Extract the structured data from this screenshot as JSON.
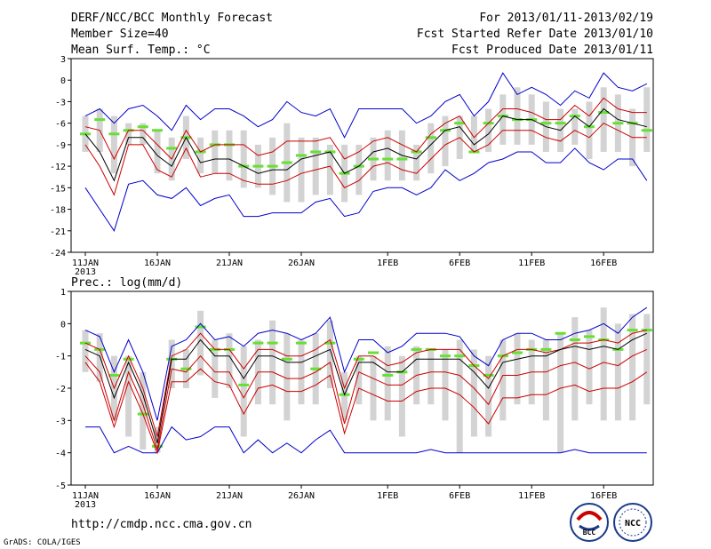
{
  "header": {
    "title": "DERF/NCC/BCC Monthly Forecast",
    "member_size": "Member Size=40",
    "variable": "Mean Surf. Temp.: °C",
    "period": "For 2013/01/11-2013/02/19",
    "started": "Fcst Started Refer Date 2013/01/10",
    "produced": "Fcst Produced Date 2013/01/11"
  },
  "footer": {
    "url": "http://cmdp.ncc.cma.gov.cn",
    "credit": "GrADS: COLA/IGES",
    "logo_bcc": "BCC",
    "logo_ncc": "NCC"
  },
  "colors": {
    "envelope_outer": "#0000cc",
    "envelope_inner": "#cc0000",
    "ensemble_mean": "#000000",
    "member_bar": "#d3d3d3",
    "member_tick": "#66e033"
  },
  "chart_data": [
    {
      "type": "line",
      "title": "Mean Surf. Temp.: °C",
      "xlabel": "",
      "ylabel": "°C",
      "ylim": [
        -24,
        3
      ],
      "yticks": [
        3,
        0,
        -3,
        -6,
        -9,
        -12,
        -15,
        -18,
        -21,
        -24
      ],
      "ytick_labels": [
        "3",
        "0",
        "-3",
        "-6",
        "-9",
        "-12",
        "-15",
        "-18",
        "-21",
        "-24"
      ],
      "xticks": [
        {
          "day": 0,
          "label": "11JAN",
          "sub": "2013"
        },
        {
          "day": 5,
          "label": "16JAN"
        },
        {
          "day": 10,
          "label": "21JAN"
        },
        {
          "day": 15,
          "label": "26JAN"
        },
        {
          "day": 21,
          "label": "1FEB"
        },
        {
          "day": 26,
          "label": "6FEB"
        },
        {
          "day": 31,
          "label": "11FEB"
        },
        {
          "day": 36,
          "label": "16FEB"
        }
      ],
      "x": [
        0,
        1,
        2,
        3,
        4,
        5,
        6,
        7,
        8,
        9,
        10,
        11,
        12,
        13,
        14,
        15,
        16,
        17,
        18,
        19,
        20,
        21,
        22,
        23,
        24,
        25,
        26,
        27,
        28,
        29,
        30,
        31,
        32,
        33,
        34,
        35,
        36,
        37,
        38,
        39
      ],
      "series": [
        {
          "name": "max",
          "color": "#0000cc",
          "values": [
            -5,
            -4,
            -6,
            -4,
            -3.5,
            -5,
            -7,
            -3.5,
            -5.5,
            -4,
            -4,
            -5,
            -6.5,
            -5.5,
            -3,
            -4.5,
            -5,
            -4,
            -8,
            -4,
            -4,
            -4,
            -4,
            -6,
            -5,
            -3,
            -2,
            -5,
            -3,
            1,
            -2,
            -1,
            -2,
            -3.5,
            -1.5,
            -2.5,
            1,
            -1,
            -1.5,
            -0.5
          ]
        },
        {
          "name": "upper",
          "color": "#cc0000",
          "values": [
            -6.5,
            -7,
            -11,
            -7,
            -7,
            -9,
            -11,
            -7,
            -10,
            -9,
            -9,
            -9,
            -10.5,
            -10,
            -8.5,
            -8.5,
            -8.5,
            -8,
            -11,
            -10,
            -8.5,
            -8,
            -9,
            -10,
            -7.5,
            -6,
            -5,
            -8,
            -6,
            -4,
            -4,
            -4.5,
            -5.5,
            -5.5,
            -3.5,
            -5,
            -2.5,
            -4,
            -4.5,
            -4.5
          ]
        },
        {
          "name": "mean",
          "color": "#000000",
          "values": [
            -7.5,
            -10,
            -14,
            -8,
            -8,
            -10.5,
            -12,
            -8,
            -11.5,
            -11,
            -11,
            -12,
            -13,
            -12.5,
            -12.5,
            -11,
            -10.5,
            -10,
            -13,
            -12,
            -10,
            -9.5,
            -10.5,
            -11,
            -9,
            -7,
            -6.5,
            -9,
            -7.5,
            -5,
            -5.5,
            -5.5,
            -6.5,
            -7,
            -5,
            -6.5,
            -4,
            -5.5,
            -6,
            -6.5
          ]
        },
        {
          "name": "lower",
          "color": "#cc0000",
          "values": [
            -9,
            -12,
            -16,
            -9,
            -9,
            -12.5,
            -13.5,
            -9.5,
            -13.5,
            -13,
            -13,
            -14,
            -14.5,
            -14.5,
            -14,
            -13,
            -12.5,
            -12,
            -15,
            -14,
            -12,
            -11.5,
            -12.5,
            -13,
            -11,
            -9,
            -8,
            -10,
            -9,
            -7,
            -7,
            -7,
            -8,
            -8.5,
            -7,
            -8,
            -6,
            -7,
            -8,
            -8
          ]
        },
        {
          "name": "min",
          "color": "#0000cc",
          "values": [
            -15,
            -18,
            -21,
            -14.5,
            -14,
            -16,
            -16.5,
            -15,
            -17.5,
            -16.5,
            -16,
            -19,
            -19,
            -18.5,
            -18.5,
            -18.5,
            -17,
            -16.5,
            -19,
            -18.5,
            -15.5,
            -15,
            -15,
            -16,
            -15,
            -12.5,
            -14,
            -13,
            -11.5,
            -11,
            -10,
            -10,
            -11.5,
            -11.5,
            -9.5,
            -11.5,
            -12.5,
            -11,
            -11,
            -14
          ]
        }
      ],
      "member_bars": [
        [
          -10,
          -5
        ],
        [
          -10,
          -4
        ],
        [
          -13,
          -5
        ],
        [
          -9,
          -6
        ],
        [
          -9,
          -6
        ],
        [
          -13,
          -7
        ],
        [
          -14,
          -8
        ],
        [
          -11,
          -5
        ],
        [
          -13,
          -8
        ],
        [
          -13,
          -7
        ],
        [
          -14,
          -7
        ],
        [
          -15,
          -7
        ],
        [
          -15,
          -9
        ],
        [
          -16,
          -8
        ],
        [
          -17,
          -6
        ],
        [
          -17,
          -8
        ],
        [
          -16,
          -8
        ],
        [
          -16,
          -9
        ],
        [
          -17,
          -9
        ],
        [
          -16,
          -9
        ],
        [
          -14,
          -8
        ],
        [
          -14,
          -7
        ],
        [
          -14,
          -7
        ],
        [
          -14,
          -9
        ],
        [
          -13,
          -6
        ],
        [
          -12,
          -5
        ],
        [
          -11,
          -5
        ],
        [
          -10,
          -5
        ],
        [
          -10,
          -4
        ],
        [
          -9,
          -2
        ],
        [
          -9,
          -1
        ],
        [
          -9,
          -2
        ],
        [
          -10,
          -3
        ],
        [
          -10,
          -4
        ],
        [
          -9,
          -4
        ],
        [
          -11,
          -3
        ],
        [
          -10,
          -1
        ],
        [
          -10,
          -2
        ],
        [
          -12,
          -4
        ],
        [
          -10,
          -1
        ]
      ],
      "member_ticks": [
        -7.5,
        -5.5,
        -7.5,
        -7,
        -6.5,
        -7,
        -9.5,
        -8,
        -10,
        -9,
        -9,
        -12,
        -12,
        -12,
        -11.5,
        -10.5,
        -10,
        -10,
        -13,
        -12,
        -11,
        -11,
        -11,
        -10,
        -8,
        -7,
        -6,
        -10,
        -6,
        -5,
        -5.5,
        -5.5,
        -6,
        -6,
        -5,
        -6.5,
        -4.5,
        -6,
        -6,
        -7
      ]
    },
    {
      "type": "line",
      "title": "Prec.: log(mm/d)",
      "xlabel": "",
      "ylabel": "log(mm/d)",
      "ylim": [
        -5,
        1
      ],
      "yticks": [
        1,
        0,
        -1,
        -2,
        -3,
        -4,
        -5
      ],
      "ytick_labels": [
        "1",
        "0",
        "-1",
        "-2",
        "-3",
        "-4",
        "-5"
      ],
      "xticks": [
        {
          "day": 0,
          "label": "11JAN",
          "sub": "2013"
        },
        {
          "day": 5,
          "label": "16JAN"
        },
        {
          "day": 10,
          "label": "21JAN"
        },
        {
          "day": 15,
          "label": "26JAN"
        },
        {
          "day": 21,
          "label": "1FEB"
        },
        {
          "day": 26,
          "label": "6FEB"
        },
        {
          "day": 31,
          "label": "11FEB"
        },
        {
          "day": 36,
          "label": "16FEB"
        }
      ],
      "x": [
        0,
        1,
        2,
        3,
        4,
        5,
        6,
        7,
        8,
        9,
        10,
        11,
        12,
        13,
        14,
        15,
        16,
        17,
        18,
        19,
        20,
        21,
        22,
        23,
        24,
        25,
        26,
        27,
        28,
        29,
        30,
        31,
        32,
        33,
        34,
        35,
        36,
        37,
        38,
        39
      ],
      "series": [
        {
          "name": "max",
          "color": "#0000cc",
          "values": [
            -0.2,
            -0.4,
            -1.5,
            -0.5,
            -1.5,
            -3.0,
            -0.7,
            -0.5,
            0.0,
            -0.5,
            -0.4,
            -0.7,
            -0.3,
            -0.2,
            -0.3,
            -0.5,
            -0.3,
            0.2,
            -1.5,
            -0.5,
            -0.5,
            -0.9,
            -0.7,
            -0.3,
            -0.3,
            -0.3,
            -0.4,
            -1.0,
            -1.3,
            -0.5,
            -0.3,
            -0.3,
            -0.5,
            -0.5,
            -0.3,
            -0.2,
            0.0,
            -0.3,
            0.2,
            0.5
          ]
        },
        {
          "name": "upper",
          "color": "#cc0000",
          "values": [
            -0.6,
            -0.8,
            -2.0,
            -1.0,
            -2.0,
            -3.5,
            -1.0,
            -0.8,
            -0.3,
            -0.8,
            -0.8,
            -1.4,
            -0.8,
            -0.8,
            -1.0,
            -1.0,
            -0.8,
            -0.5,
            -2.0,
            -1.0,
            -1.0,
            -1.3,
            -1.2,
            -0.9,
            -0.8,
            -0.8,
            -0.8,
            -1.3,
            -1.7,
            -1.0,
            -0.8,
            -0.8,
            -0.9,
            -0.8,
            -0.6,
            -0.6,
            -0.5,
            -0.6,
            -0.3,
            -0.2
          ]
        },
        {
          "name": "mean",
          "color": "#000000",
          "values": [
            -0.8,
            -1.0,
            -2.3,
            -1.2,
            -2.2,
            -3.7,
            -1.1,
            -1.1,
            -0.5,
            -1.0,
            -1.0,
            -1.7,
            -1.0,
            -1.0,
            -1.2,
            -1.2,
            -1.0,
            -0.8,
            -2.2,
            -1.2,
            -1.2,
            -1.5,
            -1.5,
            -1.1,
            -1.1,
            -1.1,
            -1.1,
            -1.5,
            -2.0,
            -1.2,
            -1.1,
            -1.0,
            -1.0,
            -0.8,
            -0.7,
            -0.8,
            -0.7,
            -0.8,
            -0.5,
            -0.3
          ]
        },
        {
          "name": "lower",
          "color": "#cc0000",
          "values": [
            -1.0,
            -1.5,
            -3.0,
            -1.5,
            -2.5,
            -3.9,
            -1.4,
            -1.5,
            -1.0,
            -1.5,
            -1.5,
            -2.3,
            -1.5,
            -1.5,
            -1.7,
            -1.7,
            -1.5,
            -1.2,
            -3.1,
            -1.5,
            -1.7,
            -1.9,
            -1.9,
            -1.6,
            -1.5,
            -1.5,
            -1.6,
            -2.0,
            -2.5,
            -1.6,
            -1.6,
            -1.5,
            -1.5,
            -1.3,
            -1.2,
            -1.4,
            -1.2,
            -1.3,
            -1.0,
            -0.8
          ]
        },
        {
          "name": "min",
          "color": "#0000cc",
          "values": [
            -3.2,
            -3.2,
            -4.0,
            -3.8,
            -4.0,
            -4.0,
            -3.2,
            -3.6,
            -3.5,
            -3.2,
            -3.2,
            -4.0,
            -3.6,
            -4.0,
            -3.7,
            -4.0,
            -3.6,
            -3.3,
            -4.0,
            -4.0,
            -4.0,
            -4.0,
            -4.0,
            -4.0,
            -3.9,
            -4.0,
            -4.0,
            -4.0,
            -4.0,
            -4.0,
            -4.0,
            -4.0,
            -4.0,
            -4.0,
            -3.9,
            -4.0,
            -4.0,
            -4.0,
            -4.0,
            -4.0
          ]
        },
        {
          "name": "lower_alt",
          "color": "#cc0000",
          "values": [
            -1.2,
            -1.8,
            -3.2,
            -1.8,
            -2.8,
            -4.0,
            -1.8,
            -1.8,
            -1.4,
            -1.8,
            -1.9,
            -2.8,
            -2.0,
            -1.9,
            -2.1,
            -2.1,
            -1.9,
            -1.6,
            -3.4,
            -2.0,
            -2.2,
            -2.4,
            -2.4,
            -2.1,
            -2.0,
            -2.0,
            -2.2,
            -2.6,
            -3.1,
            -2.3,
            -2.3,
            -2.2,
            -2.2,
            -2.0,
            -1.9,
            -2.1,
            -2.0,
            -2.0,
            -1.8,
            -1.5
          ]
        }
      ],
      "member_bars": [
        [
          -1.5,
          -0.2
        ],
        [
          -1.8,
          -0.3
        ],
        [
          -3.0,
          -1.0
        ],
        [
          -3.5,
          -1.0
        ],
        [
          -3.9,
          -1.5
        ],
        [
          -4.0,
          -3.2
        ],
        [
          -2.0,
          -0.5
        ],
        [
          -2.0,
          -0.8
        ],
        [
          -1.6,
          0.4
        ],
        [
          -2.3,
          -0.5
        ],
        [
          -2.0,
          -0.3
        ],
        [
          -3.5,
          -0.7
        ],
        [
          -2.5,
          -0.5
        ],
        [
          -2.5,
          0.1
        ],
        [
          -3.0,
          -0.3
        ],
        [
          -2.5,
          -0.5
        ],
        [
          -2.5,
          -0.3
        ],
        [
          -2.0,
          0.1
        ],
        [
          -3.0,
          -1.5
        ],
        [
          -2.5,
          -1.0
        ],
        [
          -3.0,
          -1.0
        ],
        [
          -3.0,
          -0.7
        ],
        [
          -3.5,
          -1.0
        ],
        [
          -2.5,
          -0.7
        ],
        [
          -2.5,
          -0.8
        ],
        [
          -3.0,
          -0.8
        ],
        [
          -4.0,
          -0.5
        ],
        [
          -3.5,
          -0.8
        ],
        [
          -3.5,
          -1.0
        ],
        [
          -3.0,
          -0.5
        ],
        [
          -2.5,
          -0.3
        ],
        [
          -2.5,
          -0.5
        ],
        [
          -3.0,
          -0.5
        ],
        [
          -4.0,
          -0.3
        ],
        [
          -3.0,
          0.2
        ],
        [
          -2.5,
          -0.2
        ],
        [
          -3.0,
          0.5
        ],
        [
          -3.0,
          0.0
        ],
        [
          -3.0,
          0.3
        ],
        [
          -2.5,
          0.3
        ]
      ],
      "member_ticks": [
        -0.6,
        -0.8,
        -1.6,
        -1.1,
        -2.8,
        -3.8,
        -1.1,
        -1.4,
        -0.1,
        -0.8,
        -0.8,
        -1.9,
        -0.6,
        -0.6,
        -1.1,
        -0.6,
        -1.4,
        -0.6,
        -2.2,
        -1.1,
        -0.9,
        -1.6,
        -1.5,
        -0.8,
        -0.8,
        -1.0,
        -1.0,
        -1.3,
        -1.6,
        -1.0,
        -0.9,
        -0.8,
        -0.8,
        -0.3,
        -0.5,
        -0.4,
        -0.5,
        -0.8,
        -0.2,
        -0.2
      ]
    }
  ]
}
